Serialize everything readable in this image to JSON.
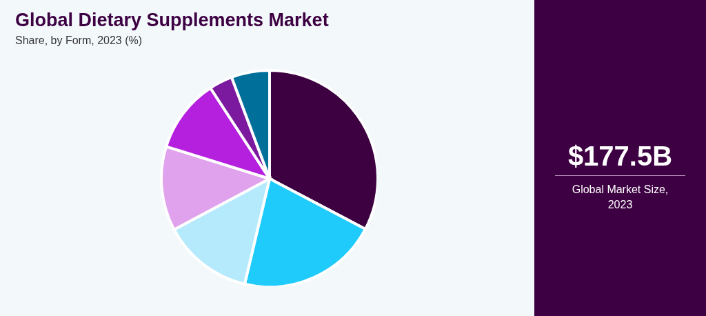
{
  "chart_data": [
    {
      "type": "pie",
      "title": "Global Dietary Supplements Market",
      "subtitle": "Share, by Form, 2023 (%)",
      "categories": [
        null,
        null,
        null,
        null,
        null,
        null,
        null
      ],
      "values": [
        32.7,
        21,
        13.5,
        12.6,
        11,
        3.5,
        5.7
      ],
      "colors": [
        "#3d0040",
        "#1ecbfa",
        "#b5eafc",
        "#e0a2ec",
        "#b520df",
        "#7b1a9e",
        "#006f99"
      ]
    },
    {
      "type": "other",
      "title": "$177.5B",
      "subtitle": "Global Market Size, 2023"
    }
  ]
}
